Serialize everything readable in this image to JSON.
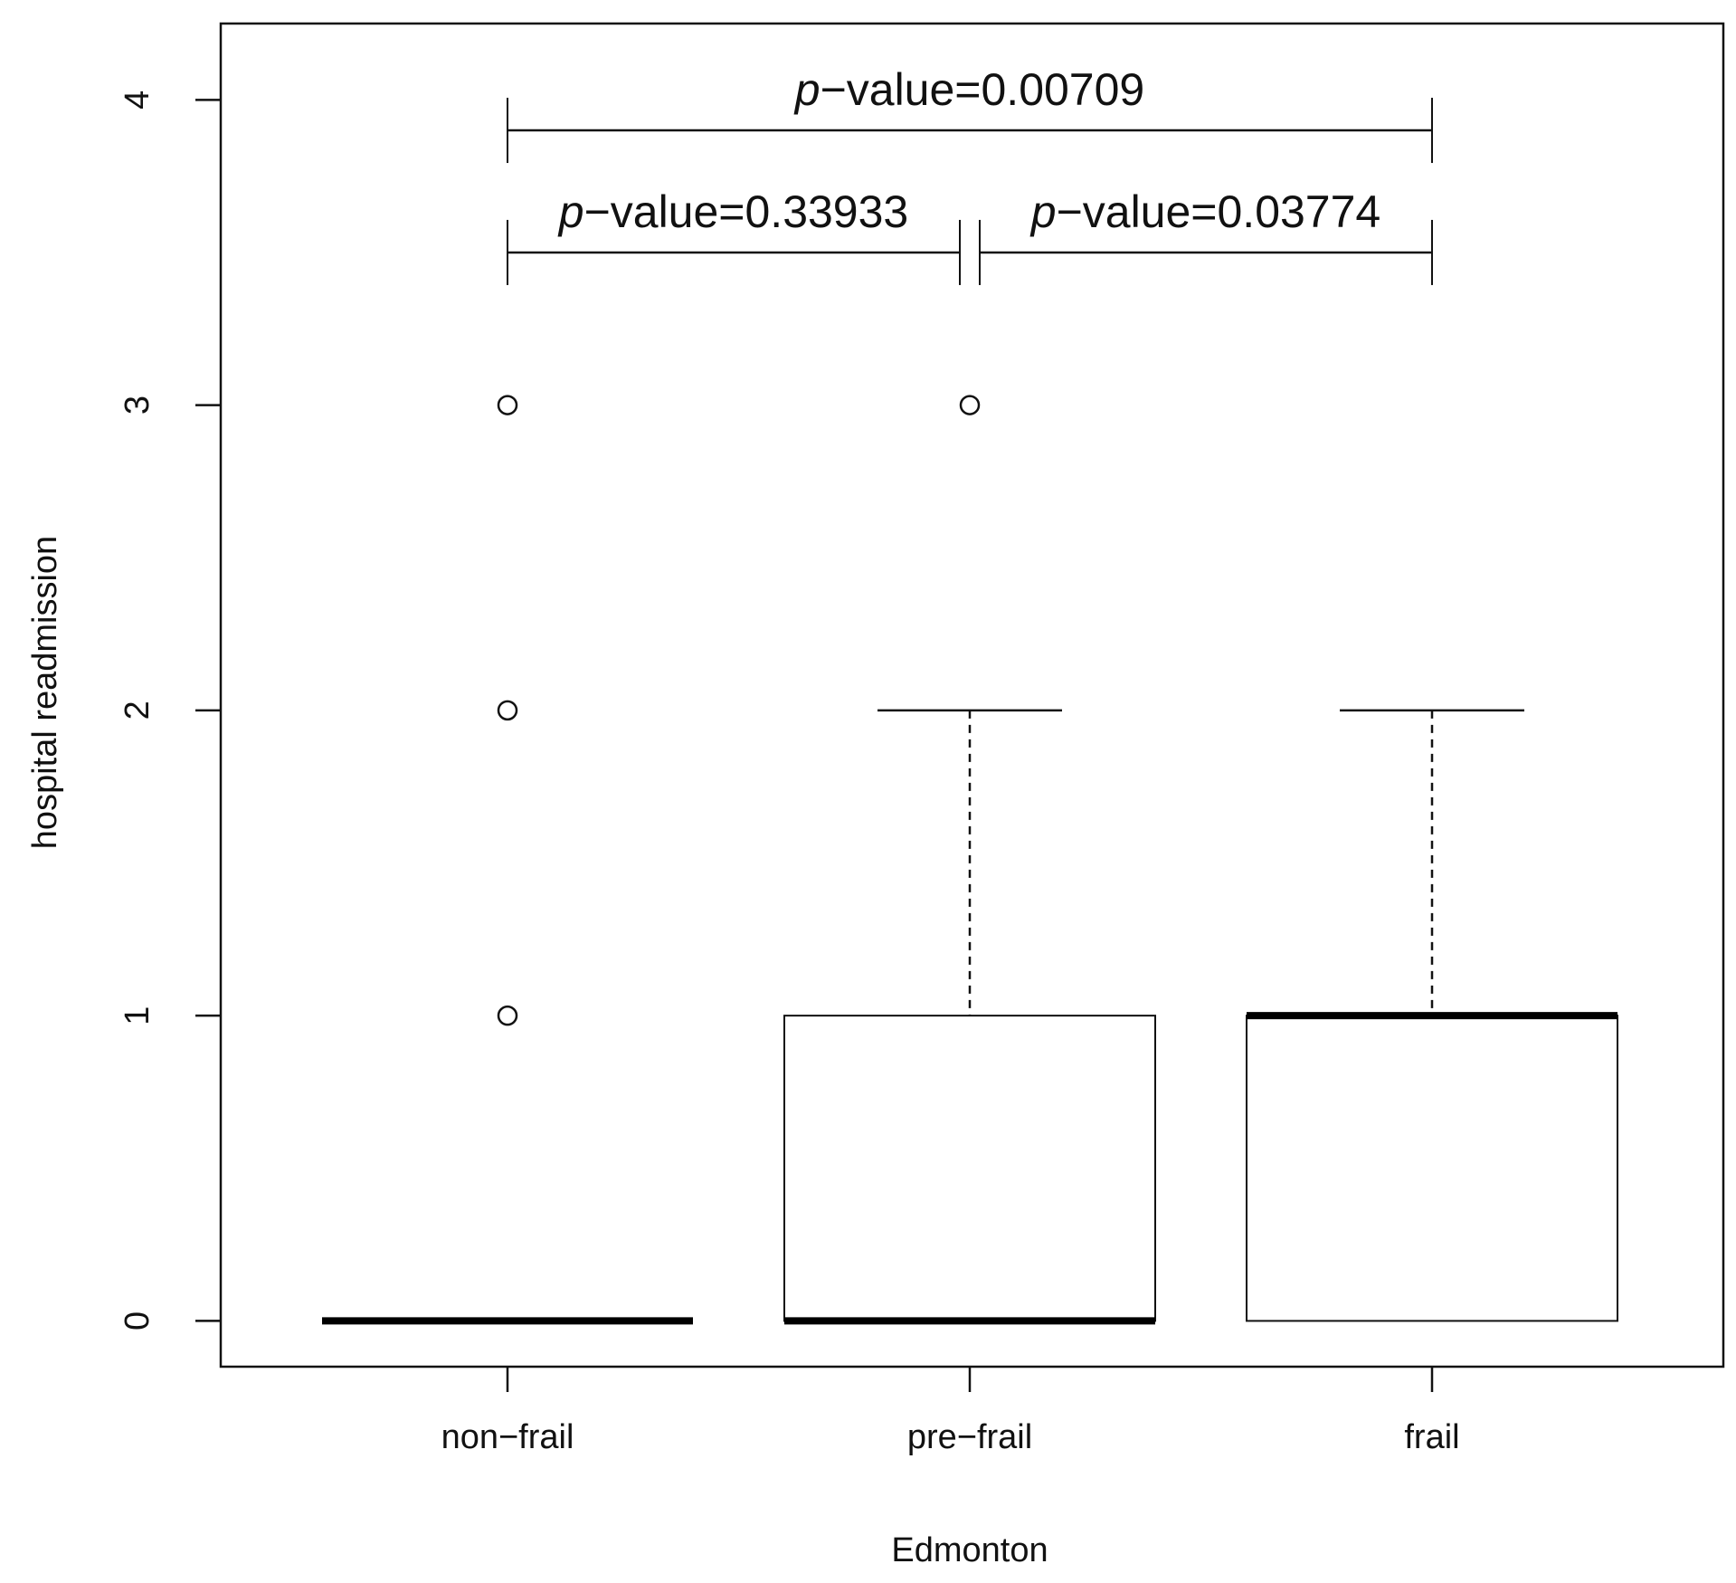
{
  "chart_data": {
    "type": "box",
    "xlabel": "Edmonton",
    "ylabel": "hospital readmission",
    "ylim": [
      -0.15,
      4.25
    ],
    "yticks": [
      0,
      1,
      2,
      3,
      4
    ],
    "categories": [
      "non−frail",
      "pre−frail",
      "frail"
    ],
    "boxes": [
      {
        "category": "non−frail",
        "lower_whisker": 0,
        "q1": 0,
        "median": 0,
        "q3": 0,
        "upper_whisker": 0,
        "outliers": [
          1,
          2,
          3
        ]
      },
      {
        "category": "pre−frail",
        "lower_whisker": 0,
        "q1": 0,
        "median": 0,
        "q3": 1,
        "upper_whisker": 2,
        "outliers": [
          3
        ]
      },
      {
        "category": "frail",
        "lower_whisker": 0,
        "q1": 0,
        "median": 1,
        "q3": 1,
        "upper_whisker": 2,
        "outliers": []
      }
    ],
    "comparisons": [
      {
        "from": "non−frail",
        "to": "pre−frail",
        "level": 3.5,
        "p_prefix": "p",
        "label": "−value=0.33933"
      },
      {
        "from": "pre−frail",
        "to": "frail",
        "level": 3.5,
        "p_prefix": "p",
        "label": "−value=0.03774"
      },
      {
        "from": "non−frail",
        "to": "frail",
        "level": 3.9,
        "p_prefix": "p",
        "label": "−value=0.00709"
      }
    ],
    "grid": false
  }
}
